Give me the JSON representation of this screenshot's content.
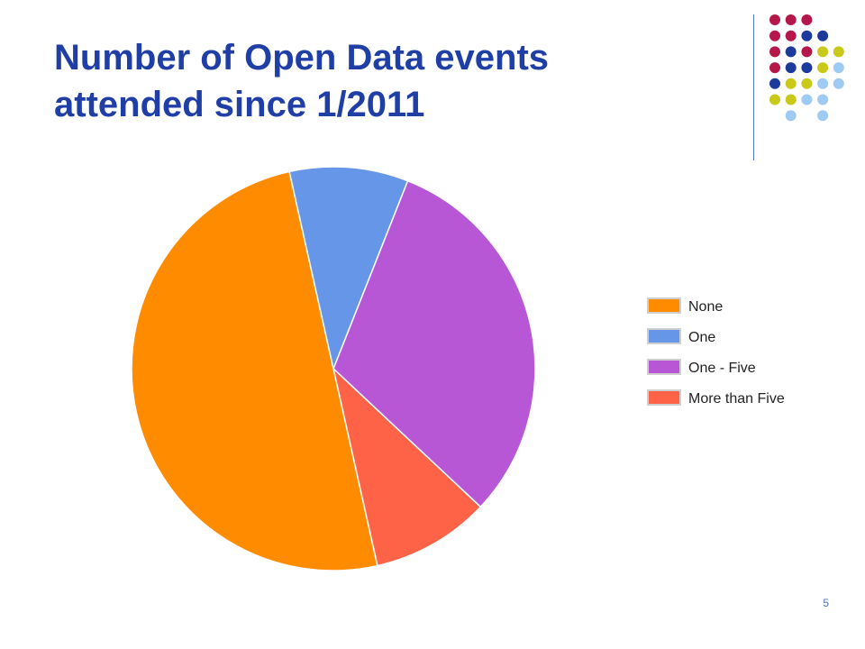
{
  "slide": {
    "title": "Number of Open Data events attended since 1/2011",
    "slide_number": "5"
  },
  "decoration": {
    "dot_colors": [
      "#b5174b",
      "#1b3a9b",
      "#c9c91a",
      "#9fcaf2"
    ]
  },
  "chart_data": {
    "type": "pie",
    "title": "",
    "slices": [
      {
        "label": "None",
        "value": 50,
        "color": "#ff8c00"
      },
      {
        "label": "One",
        "value": 9.5,
        "color": "#6596e8"
      },
      {
        "label": "One - Five",
        "value": 31,
        "color": "#b857d6"
      },
      {
        "label": "More than Five",
        "value": 9.5,
        "color": "#ff6347"
      }
    ],
    "legend_position": "right"
  }
}
